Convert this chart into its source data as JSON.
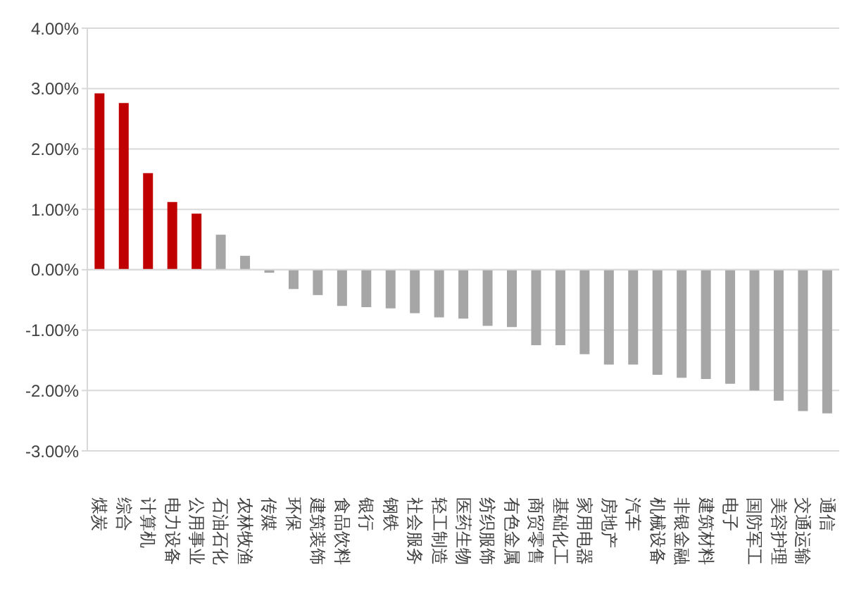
{
  "chart_data": {
    "type": "bar",
    "categories": [
      "煤炭",
      "综合",
      "计算机",
      "电力设备",
      "公用事业",
      "石油石化",
      "农林牧渔",
      "传媒",
      "环保",
      "建筑装饰",
      "食品饮料",
      "银行",
      "钢铁",
      "社会服务",
      "轻工制造",
      "医药生物",
      "纺织服饰",
      "有色金属",
      "商贸零售",
      "基础化工",
      "家用电器",
      "房地产",
      "汽车",
      "机械设备",
      "非银金融",
      "建筑材料",
      "电子",
      "国防军工",
      "美容护理",
      "交通运输",
      "通信"
    ],
    "values": [
      2.92,
      2.76,
      1.6,
      1.12,
      0.93,
      0.58,
      0.23,
      -0.05,
      -0.32,
      -0.42,
      -0.6,
      -0.62,
      -0.64,
      -0.72,
      -0.79,
      -0.81,
      -0.93,
      -0.95,
      -1.25,
      -1.25,
      -1.4,
      -1.57,
      -1.57,
      -1.74,
      -1.79,
      -1.81,
      -1.89,
      -2.0,
      -2.17,
      -2.34,
      -2.38
    ],
    "colors": [
      "#c00000",
      "#c00000",
      "#c00000",
      "#c00000",
      "#c00000",
      "#a6a6a6",
      "#a6a6a6",
      "#a6a6a6",
      "#a6a6a6",
      "#a6a6a6",
      "#a6a6a6",
      "#a6a6a6",
      "#a6a6a6",
      "#a6a6a6",
      "#a6a6a6",
      "#a6a6a6",
      "#a6a6a6",
      "#a6a6a6",
      "#a6a6a6",
      "#a6a6a6",
      "#a6a6a6",
      "#a6a6a6",
      "#a6a6a6",
      "#a6a6a6",
      "#a6a6a6",
      "#a6a6a6",
      "#a6a6a6",
      "#a6a6a6",
      "#a6a6a6",
      "#a6a6a6",
      "#a6a6a6"
    ],
    "ylim": [
      -3,
      4
    ],
    "yticks": [
      {
        "value": -3,
        "label": "-3.00%"
      },
      {
        "value": -2,
        "label": "-2.00%"
      },
      {
        "value": -1,
        "label": "-1.00%"
      },
      {
        "value": 0,
        "label": "0.00%"
      },
      {
        "value": 1,
        "label": "1.00%"
      },
      {
        "value": 2,
        "label": "2.00%"
      },
      {
        "value": 3,
        "label": "3.00%"
      },
      {
        "value": 4,
        "label": "4.00%"
      }
    ],
    "grid": "y"
  }
}
